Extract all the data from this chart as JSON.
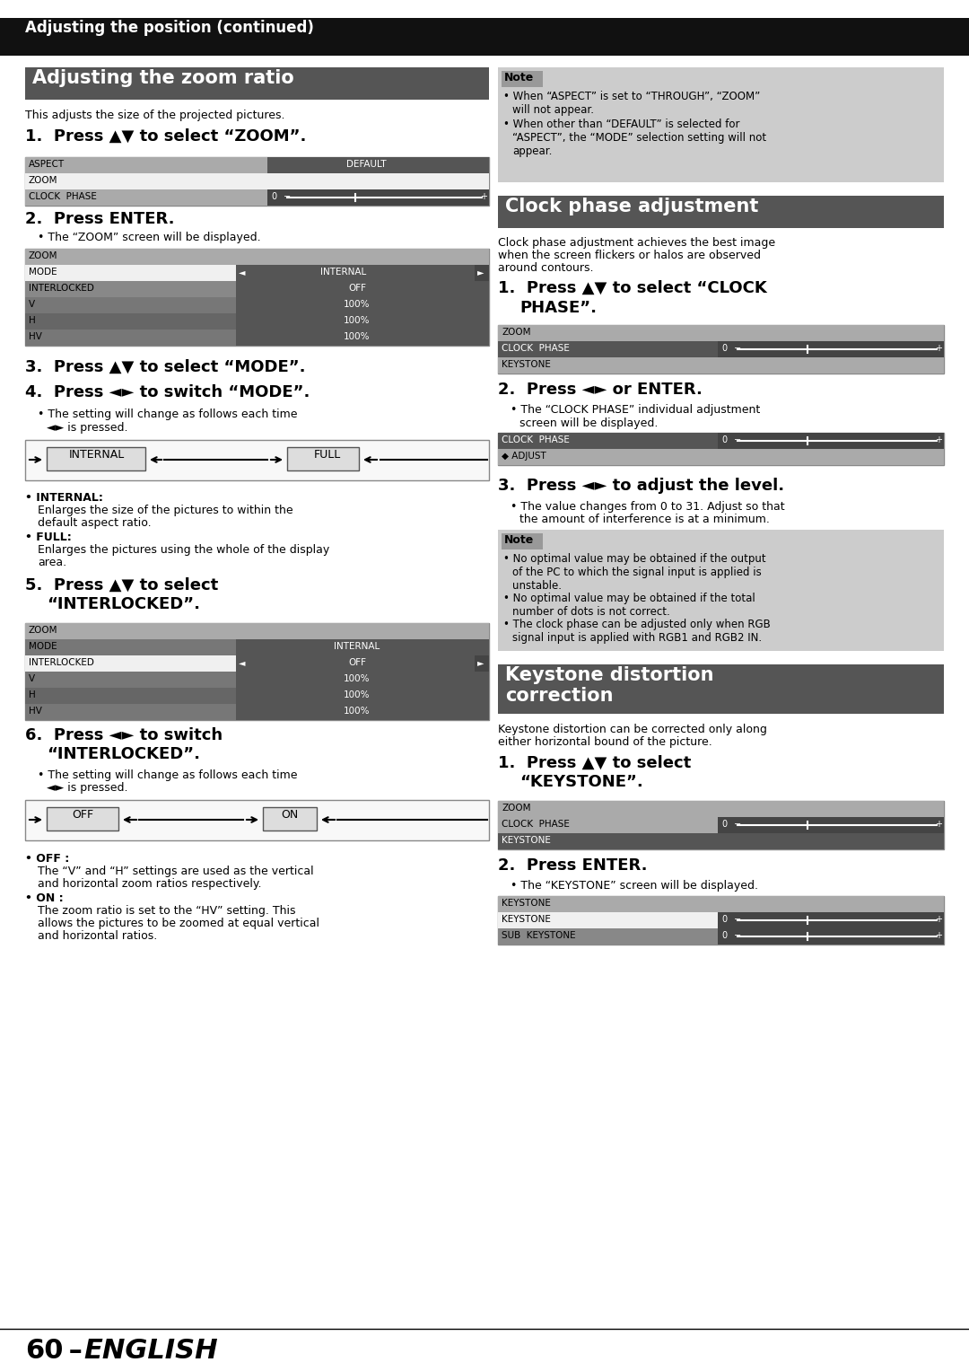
{
  "page_bg": "#ffffff",
  "header_bg": "#111111",
  "header_text": "Adjusting the position (continued)",
  "header_text_color": "#ffffff",
  "sec1_bg": "#555555",
  "sec1_text": "Adjusting the zoom ratio",
  "sec2_bg": "#555555",
  "sec2_text": "Clock phase adjustment",
  "sec3_bg": "#555555",
  "sec3_text": "Keystone distortion\ncorrection",
  "sec_text_color": "#ffffff",
  "note_bg": "#cccccc",
  "note_label_bg": "#999999",
  "table_zoom_header_bg": "#aaaaaa",
  "table_selected_bg": "#f5f5f5",
  "table_dark_bg": "#666666",
  "table_value_bg": "#555555",
  "table_border": "#888888",
  "arrow_box_bg": "#dddddd",
  "footer_line_color": "#000000"
}
